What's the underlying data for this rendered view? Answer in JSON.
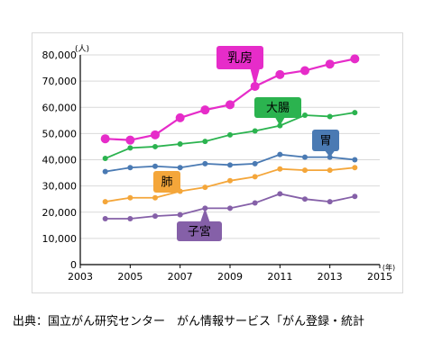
{
  "chart_data": {
    "type": "line",
    "title": "",
    "xlabel": "年",
    "ylabel": "人",
    "xlim": [
      2003,
      2015
    ],
    "ylim": [
      0,
      80000
    ],
    "x_ticks": [
      2003,
      2005,
      2007,
      2009,
      2011,
      2013,
      2015
    ],
    "y_ticks": [
      0,
      10000,
      20000,
      30000,
      40000,
      50000,
      60000,
      70000,
      80000
    ],
    "x_tick_labels": [
      "2003",
      "2005",
      "2007",
      "2009",
      "2011",
      "2013",
      "2015"
    ],
    "y_tick_labels": [
      "0",
      "10,000",
      "20,000",
      "30,000",
      "40,000",
      "50,000",
      "60,000",
      "70,000",
      "80,000"
    ],
    "x_unit_label": "(年)",
    "y_unit_label": "(人)",
    "grid": "horizontal",
    "x": [
      2004,
      2005,
      2006,
      2007,
      2008,
      2009,
      2010,
      2011,
      2012,
      2013,
      2014
    ],
    "series": [
      {
        "name": "乳房",
        "color": "#e62cc9",
        "values": [
          48000,
          47500,
          49500,
          56000,
          59000,
          61000,
          68000,
          72500,
          74000,
          76500,
          78500
        ]
      },
      {
        "name": "大腸",
        "color": "#2bb34f",
        "values": [
          40500,
          44500,
          45000,
          46000,
          47000,
          49500,
          51000,
          53000,
          57000,
          56500,
          58000
        ]
      },
      {
        "name": "胃",
        "color": "#4a7ab3",
        "values": [
          35500,
          37000,
          37500,
          37000,
          38500,
          38000,
          38500,
          42000,
          41000,
          41000,
          40000
        ]
      },
      {
        "name": "肺",
        "color": "#f4a63a",
        "values": [
          24000,
          25500,
          25500,
          28000,
          29500,
          32000,
          33500,
          36500,
          36000,
          36000,
          37000
        ]
      },
      {
        "name": "子宮",
        "color": "#8560a8",
        "values": [
          17500,
          17500,
          18500,
          19000,
          21500,
          21500,
          23500,
          27000,
          25000,
          24000,
          26000
        ]
      }
    ]
  },
  "source": {
    "text": "出典：国立がん研究センター　がん情報サービス「がん登録・統計"
  }
}
